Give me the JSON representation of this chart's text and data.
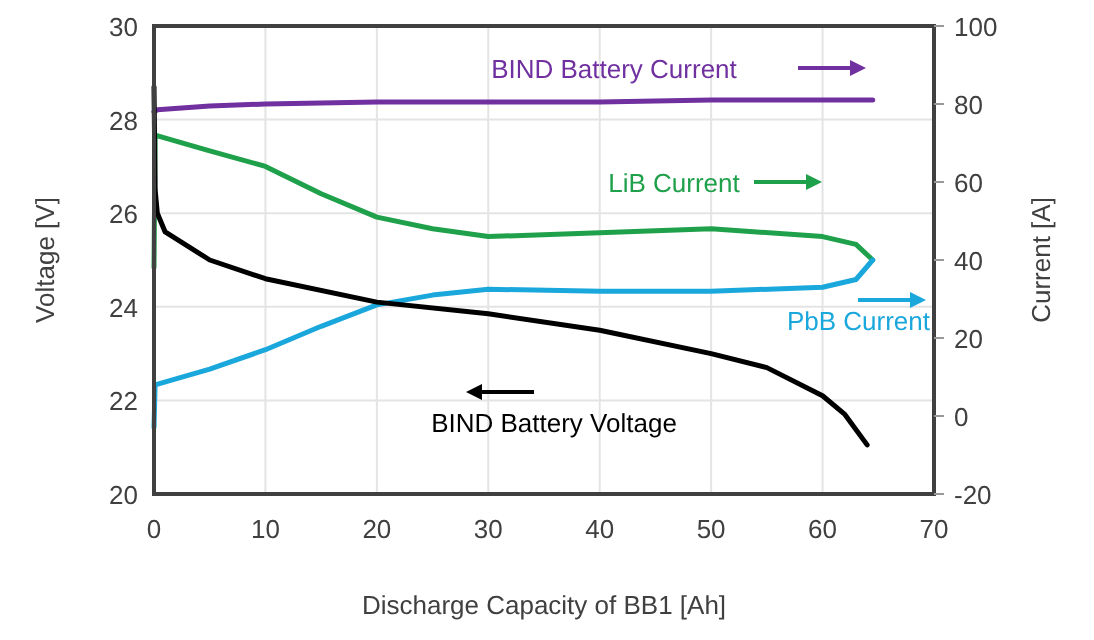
{
  "chart_data": {
    "type": "line",
    "xlabel": "Discharge Capacity of BB1 [Ah]",
    "ylabel": "Voltage [V]",
    "y2label": "Current [A]",
    "xlim": [
      0,
      70
    ],
    "xticks": [
      0,
      10,
      20,
      30,
      40,
      50,
      60,
      70
    ],
    "ylim": [
      20,
      30
    ],
    "yticks": [
      20,
      22,
      24,
      26,
      28,
      30
    ],
    "y2lim": [
      -20,
      100
    ],
    "y2ticks": [
      -20,
      0,
      20,
      40,
      60,
      80,
      100
    ],
    "grid": true,
    "legend": "top right",
    "series": [
      {
        "name": "BIND Battery Current",
        "color": "#7030a0",
        "axis": "y2",
        "x": [
          0,
          0.3,
          5,
          10,
          20,
          30,
          40,
          50,
          60,
          64.5
        ],
        "values": [
          78,
          78.5,
          79.5,
          80,
          80.5,
          80.5,
          80.5,
          81,
          81,
          81
        ]
      },
      {
        "name": "LiB Current",
        "color": "#1fa04a",
        "axis": "y2",
        "x": [
          0,
          0.1,
          5,
          10,
          15,
          20,
          25,
          30,
          40,
          50,
          60,
          63,
          64.5
        ],
        "values": [
          38,
          72,
          68,
          64,
          57,
          51,
          48,
          46,
          47,
          48,
          46,
          44,
          40
        ]
      },
      {
        "name": "PbB Current",
        "color": "#1aa7dc",
        "axis": "y2",
        "x": [
          0,
          0.1,
          5,
          10,
          15,
          20,
          25,
          30,
          40,
          50,
          60,
          63,
          64.5
        ],
        "values": [
          -3,
          8,
          12,
          17,
          23,
          28.5,
          31,
          32.5,
          32,
          32,
          33,
          35,
          40
        ]
      },
      {
        "name": "BIND Battery Voltage",
        "color": "#000000",
        "x": [
          0,
          0.1,
          0.3,
          1,
          5,
          10,
          20,
          30,
          40,
          50,
          55,
          60,
          62,
          64
        ],
        "values": [
          28.7,
          26.5,
          26,
          25.6,
          25,
          24.6,
          24.1,
          23.85,
          23.5,
          23,
          22.7,
          22.1,
          21.7,
          21.05
        ]
      }
    ]
  }
}
